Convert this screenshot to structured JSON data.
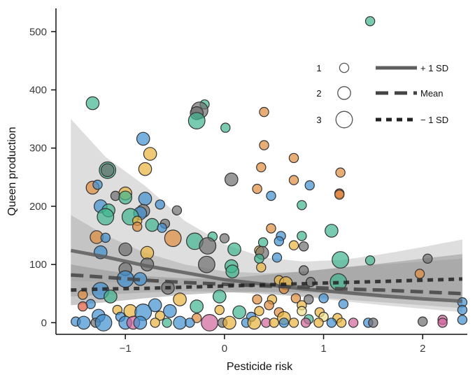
{
  "chart_data": {
    "type": "scatter",
    "xlabel": "Pesticide risk",
    "ylabel": "Queen production",
    "xlim": [
      -1.7,
      2.45
    ],
    "ylim": [
      -20,
      540
    ],
    "x_ticks": [
      -1,
      0,
      1,
      2
    ],
    "x_tick_labels": [
      "−1",
      "0",
      "1",
      "2"
    ],
    "y_ticks": [
      0,
      100,
      200,
      300,
      400,
      500
    ],
    "y_tick_labels": [
      "0",
      "100",
      "200",
      "300",
      "400",
      "500"
    ],
    "grid": false,
    "legend": {
      "placement": "top-right",
      "size_entries": [
        {
          "label": "1",
          "size": 1
        },
        {
          "label": "2",
          "size": 2
        },
        {
          "label": "3",
          "size": 3
        }
      ],
      "line_entries": [
        {
          "label": "+ 1 SD",
          "style": "solid"
        },
        {
          "label": "Mean",
          "style": "long-dash"
        },
        {
          "label": "− 1 SD",
          "style": "short-dash"
        }
      ]
    },
    "series": [
      {
        "name": "+ 1 SD",
        "style": "solid",
        "x": [
          -1.55,
          -1.2,
          -0.8,
          -0.4,
          0,
          0.4,
          0.8,
          1.2,
          1.6,
          2.0,
          2.4
        ],
        "y": [
          124,
          113,
          98,
          86,
          74,
          66,
          58,
          52,
          46,
          41,
          37
        ],
        "ci_lower": [
          72,
          70,
          68,
          63,
          57,
          51,
          44,
          37,
          30,
          24,
          18
        ],
        "ci_upper": [
          350,
          285,
          235,
          175,
          135,
          112,
          105,
          108,
          118,
          130,
          143
        ]
      },
      {
        "name": "Mean",
        "style": "long-dash",
        "x": [
          -1.55,
          -1.2,
          -0.8,
          -0.4,
          0,
          0.4,
          0.8,
          1.2,
          1.6,
          2.0,
          2.4
        ],
        "y": [
          82,
          78,
          73,
          69,
          66,
          63,
          61,
          58,
          56,
          53,
          50
        ],
        "ci_lower": [
          45,
          48,
          52,
          54,
          53,
          49,
          45,
          40,
          35,
          30,
          25
        ],
        "ci_upper": [
          185,
          150,
          120,
          100,
          88,
          85,
          88,
          95,
          100,
          105,
          110
        ]
      },
      {
        "name": "− 1 SD",
        "style": "short-dash",
        "x": [
          -1.55,
          -1.2,
          -0.8,
          -0.4,
          0,
          0.4,
          0.8,
          1.2,
          1.6,
          2.0,
          2.4
        ],
        "y": [
          56,
          58,
          59,
          61,
          63,
          65,
          67,
          69,
          71,
          73,
          75
        ],
        "ci_lower": [
          30,
          35,
          42,
          48,
          52,
          53,
          52,
          50,
          47,
          44,
          40
        ],
        "ci_upper": [
          100,
          90,
          80,
          76,
          76,
          82,
          88,
          95,
          102,
          110,
          118
        ]
      }
    ],
    "points": [
      {
        "x": 1.47,
        "y": 518,
        "size": 1,
        "color": "#3fb58f"
      },
      {
        "x": -1.33,
        "y": 377,
        "size": 2,
        "color": "#3fb58f"
      },
      {
        "x": -0.2,
        "y": 375,
        "size": 1,
        "color": "#3fb58f"
      },
      {
        "x": -0.25,
        "y": 365,
        "size": 3,
        "color": "#6e6e6e"
      },
      {
        "x": -0.28,
        "y": 360,
        "size": 2,
        "color": "#6e6e6e"
      },
      {
        "x": 0.4,
        "y": 362,
        "size": 1,
        "color": "#e08a3c"
      },
      {
        "x": -0.28,
        "y": 347,
        "size": 3,
        "color": "#3fb58f"
      },
      {
        "x": 0.01,
        "y": 335,
        "size": 1,
        "color": "#3fb58f"
      },
      {
        "x": -0.82,
        "y": 316,
        "size": 2,
        "color": "#3f8fd0"
      },
      {
        "x": 0.4,
        "y": 305,
        "size": 1,
        "color": "#e08a3c"
      },
      {
        "x": -0.75,
        "y": 290,
        "size": 2,
        "color": "#e8b23a"
      },
      {
        "x": 0.7,
        "y": 283,
        "size": 1,
        "color": "#e08a3c"
      },
      {
        "x": -1.18,
        "y": 262,
        "size": 3,
        "color": "#3fb58f"
      },
      {
        "x": -1.18,
        "y": 262,
        "size": 2,
        "color": "#6e6e6e"
      },
      {
        "x": -0.8,
        "y": 264,
        "size": 2,
        "color": "#e8b23a"
      },
      {
        "x": 0.37,
        "y": 267,
        "size": 1,
        "color": "#e08a3c"
      },
      {
        "x": 1.17,
        "y": 258,
        "size": 1,
        "color": "#e08a3c"
      },
      {
        "x": 0.07,
        "y": 246,
        "size": 2,
        "color": "#6e6e6e"
      },
      {
        "x": 0.7,
        "y": 245,
        "size": 1,
        "color": "#e08a3c"
      },
      {
        "x": 0.86,
        "y": 236,
        "size": 1,
        "color": "#3f8fd0"
      },
      {
        "x": -1.33,
        "y": 232,
        "size": 2,
        "color": "#e08a3c"
      },
      {
        "x": -1.28,
        "y": 237,
        "size": 1,
        "color": "#3f8fd0"
      },
      {
        "x": 0.33,
        "y": 230,
        "size": 1,
        "color": "#e08a3c"
      },
      {
        "x": 1.16,
        "y": 222,
        "size": 1,
        "color": "#e05a3c"
      },
      {
        "x": 1.16,
        "y": 220,
        "size": 1,
        "color": "#e08a3c"
      },
      {
        "x": -1.0,
        "y": 222,
        "size": 2,
        "color": "#e8b23a"
      },
      {
        "x": -1.1,
        "y": 218,
        "size": 1,
        "color": "#6e6e6e"
      },
      {
        "x": 0.47,
        "y": 218,
        "size": 1,
        "color": "#3f8fd0"
      },
      {
        "x": -0.8,
        "y": 213,
        "size": 2,
        "color": "#3f8fd0"
      },
      {
        "x": -1.0,
        "y": 215,
        "size": 2,
        "color": "#3fb58f"
      },
      {
        "x": 0.78,
        "y": 202,
        "size": 1,
        "color": "#3fb58f"
      },
      {
        "x": -0.65,
        "y": 203,
        "size": 1,
        "color": "#3f8fd0"
      },
      {
        "x": -1.25,
        "y": 200,
        "size": 2,
        "color": "#3f8fd0"
      },
      {
        "x": -1.17,
        "y": 193,
        "size": 2,
        "color": "#3fb58f"
      },
      {
        "x": -0.48,
        "y": 193,
        "size": 1,
        "color": "#6e6e6e"
      },
      {
        "x": -0.82,
        "y": 192,
        "size": 2,
        "color": "#6e6e6e"
      },
      {
        "x": -0.85,
        "y": 188,
        "size": 2,
        "color": "#3f8fd0"
      },
      {
        "x": -1.2,
        "y": 182,
        "size": 3,
        "color": "#3fb58f"
      },
      {
        "x": -0.95,
        "y": 182,
        "size": 3,
        "color": "#3fb58f"
      },
      {
        "x": -0.88,
        "y": 175,
        "size": 1,
        "color": "#e8b23a"
      },
      {
        "x": -0.6,
        "y": 170,
        "size": 1,
        "color": "#6e6e6e"
      },
      {
        "x": -0.73,
        "y": 168,
        "size": 2,
        "color": "#3fb58f"
      },
      {
        "x": -0.88,
        "y": 165,
        "size": 1,
        "color": "#e08a3c"
      },
      {
        "x": -0.63,
        "y": 163,
        "size": 1,
        "color": "#3f8fd0"
      },
      {
        "x": 0.47,
        "y": 162,
        "size": 1,
        "color": "#e08a3c"
      },
      {
        "x": 1.08,
        "y": 158,
        "size": 2,
        "color": "#3fb58f"
      },
      {
        "x": 0.57,
        "y": 149,
        "size": 1,
        "color": "#3f8fd0"
      },
      {
        "x": 0.78,
        "y": 149,
        "size": 1,
        "color": "#3fb58f"
      },
      {
        "x": -1.29,
        "y": 147,
        "size": 2,
        "color": "#e08a3c"
      },
      {
        "x": -1.2,
        "y": 146,
        "size": 1,
        "color": "#3f8fd0"
      },
      {
        "x": -0.52,
        "y": 145,
        "size": 3,
        "color": "#e08a3c"
      },
      {
        "x": -0.12,
        "y": 148,
        "size": 1,
        "color": "#3fb58f"
      },
      {
        "x": 0.0,
        "y": 145,
        "size": 1,
        "color": "#6e6e6e"
      },
      {
        "x": 0.55,
        "y": 140,
        "size": 1,
        "color": "#3f8fd0"
      },
      {
        "x": 0.39,
        "y": 138,
        "size": 1,
        "color": "#3fb58f"
      },
      {
        "x": -0.3,
        "y": 140,
        "size": 3,
        "color": "#3fb58f"
      },
      {
        "x": -0.17,
        "y": 132,
        "size": 3,
        "color": "#6e6e6e"
      },
      {
        "x": 0.7,
        "y": 133,
        "size": 1,
        "color": "#e8b23a"
      },
      {
        "x": 0.8,
        "y": 131,
        "size": 1,
        "color": "#6e6e6e"
      },
      {
        "x": -1.0,
        "y": 126,
        "size": 2,
        "color": "#6e6e6e"
      },
      {
        "x": 0.1,
        "y": 126,
        "size": 2,
        "color": "#3fb58f"
      },
      {
        "x": 0.35,
        "y": 124,
        "size": 1,
        "color": "#e8b23a"
      },
      {
        "x": 0.38,
        "y": 120,
        "size": 2,
        "color": "#6e6e6e"
      },
      {
        "x": -0.78,
        "y": 120,
        "size": 2,
        "color": "#e8b23a"
      },
      {
        "x": -1.25,
        "y": 121,
        "size": 2,
        "color": "#3f8fd0"
      },
      {
        "x": 0.53,
        "y": 112,
        "size": 1,
        "color": "#3f8fd0"
      },
      {
        "x": 0.35,
        "y": 110,
        "size": 1,
        "color": "#3fb58f"
      },
      {
        "x": 1.17,
        "y": 108,
        "size": 3,
        "color": "#3fb58f"
      },
      {
        "x": 1.47,
        "y": 107,
        "size": 1,
        "color": "#3fb58f"
      },
      {
        "x": 2.05,
        "y": 110,
        "size": 1,
        "color": "#6e6e6e"
      },
      {
        "x": -0.78,
        "y": 100,
        "size": 2,
        "color": "#6e6e6e"
      },
      {
        "x": -0.18,
        "y": 100,
        "size": 3,
        "color": "#6e6e6e"
      },
      {
        "x": 0.07,
        "y": 97,
        "size": 2,
        "color": "#3fb58f"
      },
      {
        "x": 0.37,
        "y": 95,
        "size": 1,
        "color": "#e8b23a"
      },
      {
        "x": -1.0,
        "y": 92,
        "size": 2,
        "color": "#6e6e6e"
      },
      {
        "x": 0.8,
        "y": 90,
        "size": 1,
        "color": "#6e6e6e"
      },
      {
        "x": 0.08,
        "y": 88,
        "size": 2,
        "color": "#3fb58f"
      },
      {
        "x": 1.97,
        "y": 84,
        "size": 1,
        "color": "#e08a3c"
      },
      {
        "x": -1.0,
        "y": 75,
        "size": 3,
        "color": "#3f8fd0"
      },
      {
        "x": -0.85,
        "y": 75,
        "size": 2,
        "color": "#3f8fd0"
      },
      {
        "x": 0.55,
        "y": 73,
        "size": 1,
        "color": "#e8b23a"
      },
      {
        "x": 0.62,
        "y": 68,
        "size": 2,
        "color": "#e8b23a"
      },
      {
        "x": 0.87,
        "y": 70,
        "size": 1,
        "color": "#6e6e6e"
      },
      {
        "x": 1.15,
        "y": 70,
        "size": 3,
        "color": "#3fb58f"
      },
      {
        "x": -0.57,
        "y": 60,
        "size": 2,
        "color": "#6e6e6e"
      },
      {
        "x": 0.6,
        "y": 58,
        "size": 1,
        "color": "#e08a3c"
      },
      {
        "x": -1.25,
        "y": 55,
        "size": 3,
        "color": "#3f8fd0"
      },
      {
        "x": -1.43,
        "y": 48,
        "size": 1,
        "color": "#e08a3c"
      },
      {
        "x": -1.15,
        "y": 45,
        "size": 2,
        "color": "#3fb58f"
      },
      {
        "x": -0.45,
        "y": 40,
        "size": 2,
        "color": "#e8b23a"
      },
      {
        "x": -0.05,
        "y": 45,
        "size": 2,
        "color": "#3fb58f"
      },
      {
        "x": 0.33,
        "y": 40,
        "size": 1,
        "color": "#e08a3c"
      },
      {
        "x": 0.48,
        "y": 40,
        "size": 1,
        "color": "#e8b23a"
      },
      {
        "x": 0.72,
        "y": 42,
        "size": 1,
        "color": "#e08a3c"
      },
      {
        "x": 0.85,
        "y": 40,
        "size": 1,
        "color": "#6e6e6e"
      },
      {
        "x": 1.0,
        "y": 42,
        "size": 1,
        "color": "#3f8fd0"
      },
      {
        "x": -1.35,
        "y": 32,
        "size": 1,
        "color": "#3f8fd0"
      },
      {
        "x": -0.7,
        "y": 30,
        "size": 2,
        "color": "#3f8fd0"
      },
      {
        "x": -0.28,
        "y": 28,
        "size": 2,
        "color": "#3fb58f"
      },
      {
        "x": 0.45,
        "y": 30,
        "size": 1,
        "color": "#e08a3c"
      },
      {
        "x": 0.78,
        "y": 30,
        "size": 1,
        "color": "#e8b23a"
      },
      {
        "x": 1.2,
        "y": 32,
        "size": 1,
        "color": "#3f8fd0"
      },
      {
        "x": 2.4,
        "y": 35,
        "size": 1,
        "color": "#3f8fd0"
      },
      {
        "x": -1.43,
        "y": 28,
        "size": 1,
        "color": "#e05a3c"
      },
      {
        "x": -1.08,
        "y": 22,
        "size": 1,
        "color": "#e8b23a"
      },
      {
        "x": -0.95,
        "y": 20,
        "size": 2,
        "color": "#e8b23a"
      },
      {
        "x": -0.82,
        "y": 18,
        "size": 3,
        "color": "#3f8fd0"
      },
      {
        "x": -0.55,
        "y": 20,
        "size": 2,
        "color": "#3f8fd0"
      },
      {
        "x": -0.05,
        "y": 22,
        "size": 1,
        "color": "#e8b23a"
      },
      {
        "x": 0.15,
        "y": 18,
        "size": 2,
        "color": "#3fb58f"
      },
      {
        "x": 0.35,
        "y": 20,
        "size": 1,
        "color": "#e8b23a"
      },
      {
        "x": 0.55,
        "y": 18,
        "size": 1,
        "color": "#e08a3c"
      },
      {
        "x": 0.78,
        "y": 20,
        "size": 1,
        "color": "#f0e08a"
      },
      {
        "x": 0.96,
        "y": 18,
        "size": 1,
        "color": "#e8b23a"
      },
      {
        "x": 2.4,
        "y": 22,
        "size": 1,
        "color": "#3f8fd0"
      },
      {
        "x": -1.27,
        "y": 12,
        "size": 2,
        "color": "#3f8fd0"
      },
      {
        "x": -1.05,
        "y": 10,
        "size": 1,
        "color": "#3f8fd0"
      },
      {
        "x": -0.65,
        "y": 12,
        "size": 1,
        "color": "#e8b23a"
      },
      {
        "x": -0.28,
        "y": 8,
        "size": 1,
        "color": "#e08a3c"
      },
      {
        "x": 0.27,
        "y": 10,
        "size": 1,
        "color": "#3f8fd0"
      },
      {
        "x": 0.6,
        "y": 8,
        "size": 2,
        "color": "#e8b23a"
      },
      {
        "x": 0.85,
        "y": 6,
        "size": 1,
        "color": "#3fb58f"
      },
      {
        "x": 1.0,
        "y": 10,
        "size": 1,
        "color": "#f0e08a"
      },
      {
        "x": 1.14,
        "y": 8,
        "size": 1,
        "color": "#e8b23a"
      },
      {
        "x": 2.0,
        "y": 2,
        "size": 1,
        "color": "#6e6e6e"
      },
      {
        "x": 2.2,
        "y": 5,
        "size": 1,
        "color": "#d2649a"
      },
      {
        "x": -1.5,
        "y": 2,
        "size": 1,
        "color": "#3f8fd0"
      },
      {
        "x": -1.42,
        "y": 0,
        "size": 2,
        "color": "#3f8fd0"
      },
      {
        "x": -1.3,
        "y": 0,
        "size": 1,
        "color": "#6e6e6e"
      },
      {
        "x": -1.22,
        "y": 0,
        "size": 3,
        "color": "#3f8fd0"
      },
      {
        "x": -1.0,
        "y": 0,
        "size": 2,
        "color": "#3f8fd0"
      },
      {
        "x": -0.92,
        "y": 0,
        "size": 2,
        "color": "#d2649a"
      },
      {
        "x": -0.85,
        "y": 0,
        "size": 2,
        "color": "#3f8fd0"
      },
      {
        "x": -0.7,
        "y": 0,
        "size": 1,
        "color": "#e8b23a"
      },
      {
        "x": -0.58,
        "y": 0,
        "size": 1,
        "color": "#3fb58f"
      },
      {
        "x": -0.45,
        "y": 0,
        "size": 2,
        "color": "#3f8fd0"
      },
      {
        "x": -0.35,
        "y": 0,
        "size": 1,
        "color": "#3f8fd0"
      },
      {
        "x": -0.15,
        "y": 0,
        "size": 3,
        "color": "#d2649a"
      },
      {
        "x": -0.02,
        "y": 0,
        "size": 1,
        "color": "#6e6e6e"
      },
      {
        "x": 0.05,
        "y": 0,
        "size": 2,
        "color": "#e8b23a"
      },
      {
        "x": 0.22,
        "y": 0,
        "size": 1,
        "color": "#3f8fd0"
      },
      {
        "x": 0.3,
        "y": 0,
        "size": 2,
        "color": "#e8b23a"
      },
      {
        "x": 0.42,
        "y": 0,
        "size": 1,
        "color": "#d2649a"
      },
      {
        "x": 0.5,
        "y": 0,
        "size": 1,
        "color": "#e8b23a"
      },
      {
        "x": 0.6,
        "y": 0,
        "size": 1,
        "color": "#3f8fd0"
      },
      {
        "x": 0.7,
        "y": 0,
        "size": 1,
        "color": "#e8b23a"
      },
      {
        "x": 0.82,
        "y": 0,
        "size": 1,
        "color": "#d2649a"
      },
      {
        "x": 0.95,
        "y": 0,
        "size": 1,
        "color": "#e8b23a"
      },
      {
        "x": 1.08,
        "y": 0,
        "size": 1,
        "color": "#3f8fd0"
      },
      {
        "x": 1.18,
        "y": 0,
        "size": 1,
        "color": "#e8b23a"
      },
      {
        "x": 1.3,
        "y": 0,
        "size": 1,
        "color": "#d2649a"
      },
      {
        "x": 1.45,
        "y": 0,
        "size": 1,
        "color": "#3f8fd0"
      },
      {
        "x": 1.5,
        "y": 0,
        "size": 1,
        "color": "#6e6e6e"
      },
      {
        "x": 2.2,
        "y": 0,
        "size": 1,
        "color": "#d2649a"
      },
      {
        "x": 2.4,
        "y": 5,
        "size": 1,
        "color": "#3f8fd0"
      }
    ]
  }
}
